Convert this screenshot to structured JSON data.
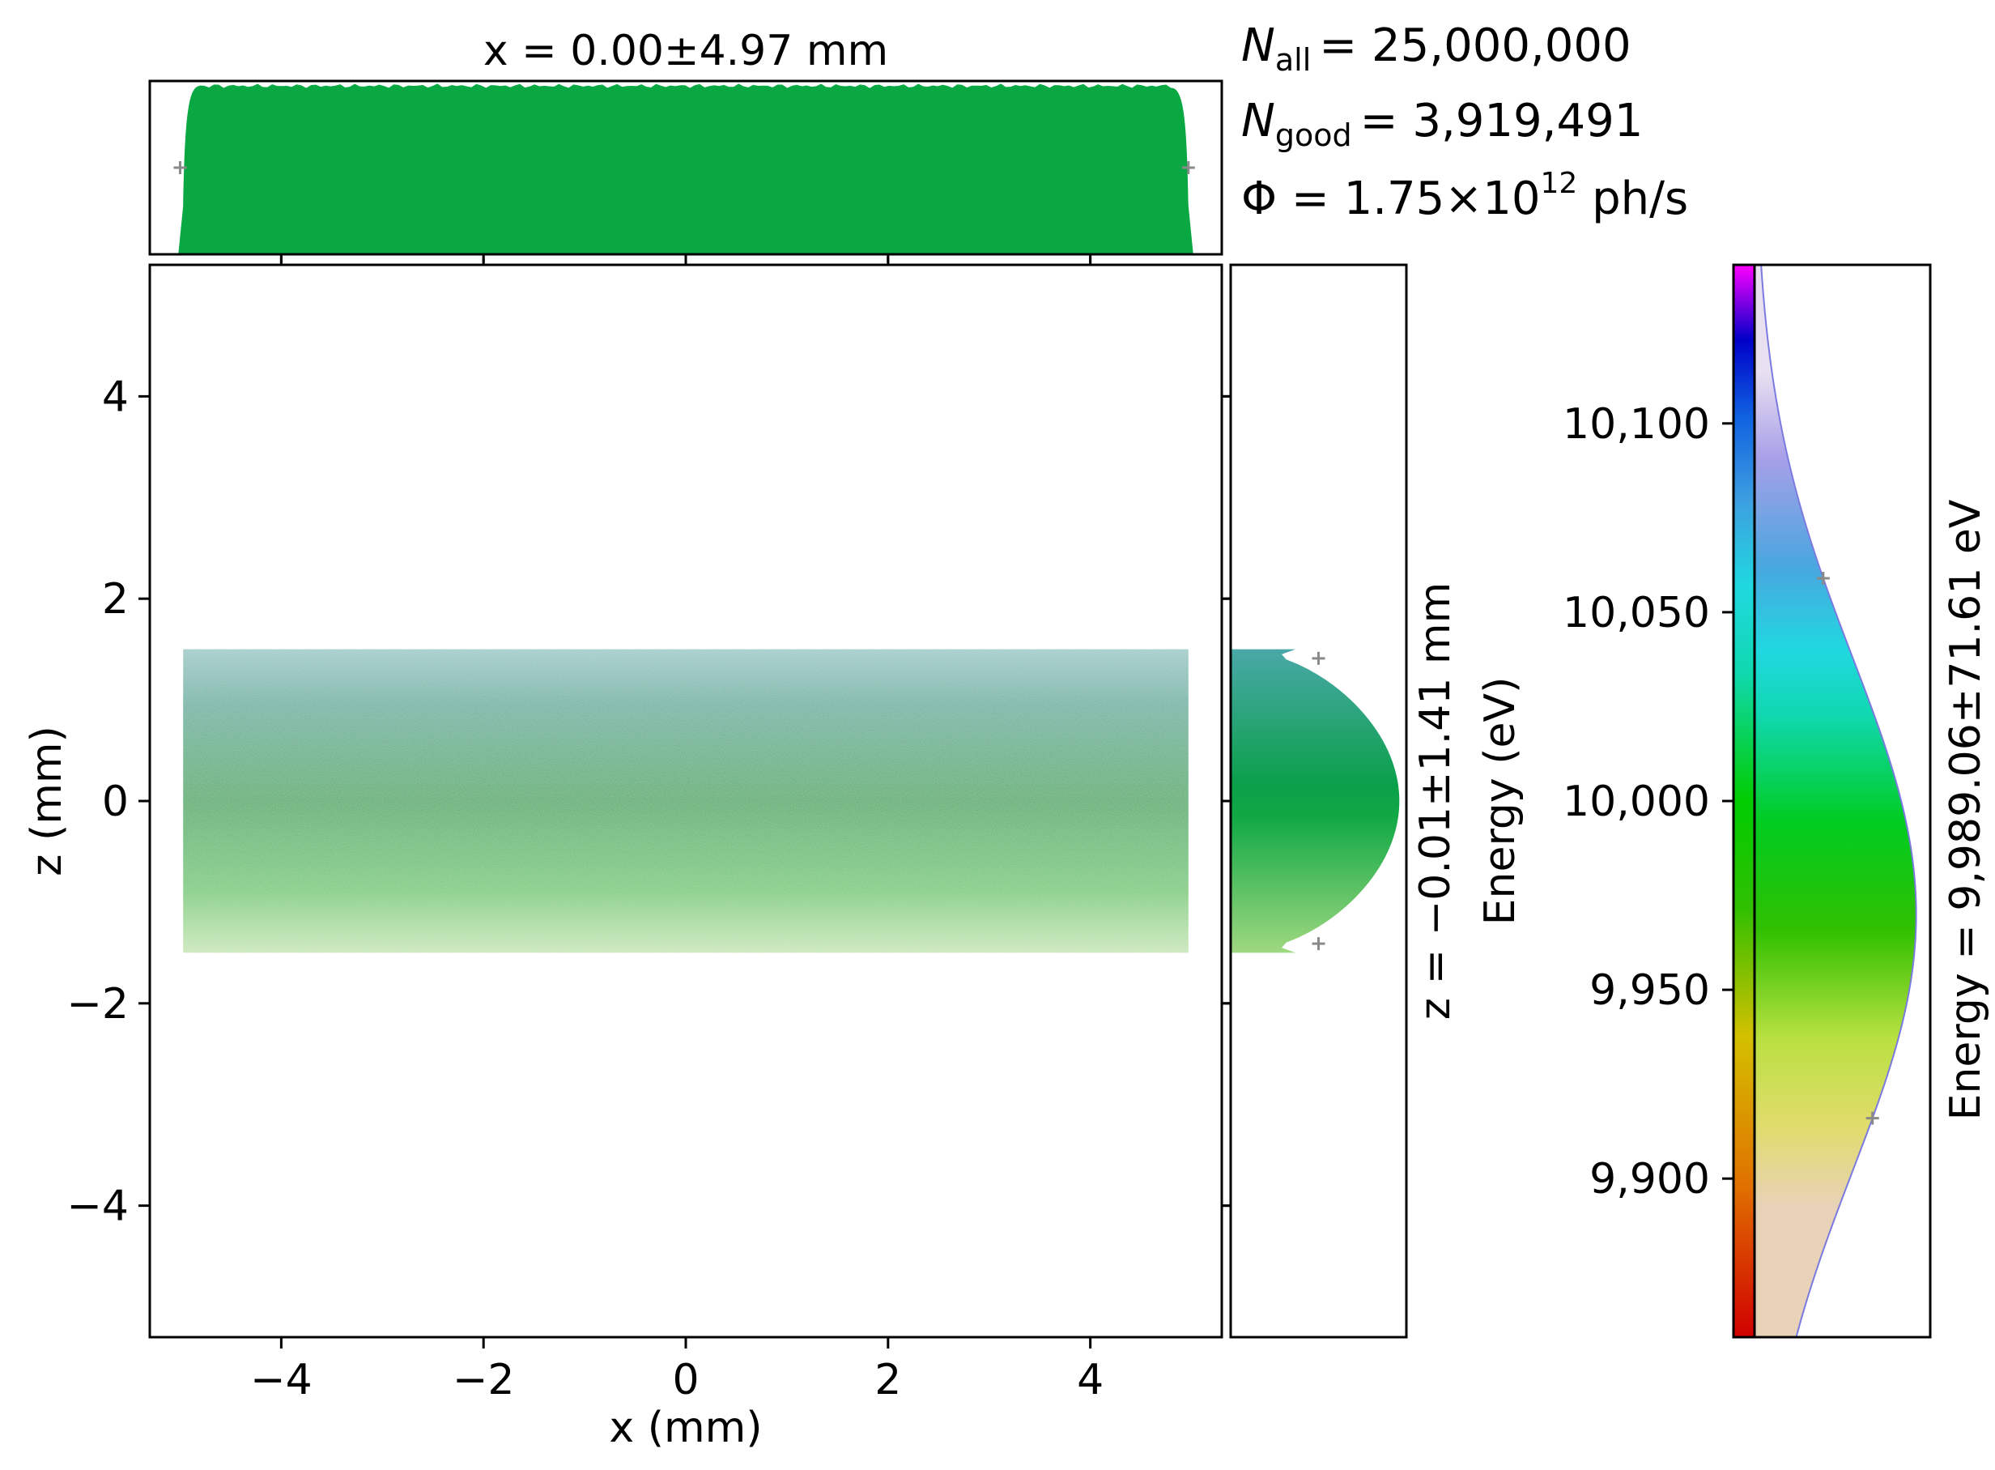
{
  "chart_data": {
    "type": "heatmap",
    "main": {
      "xlabel": "x (mm)",
      "ylabel": "z (mm)",
      "xlim": [
        -5.3,
        5.3
      ],
      "ylim": [
        -5.3,
        5.3
      ],
      "xticks": [
        -4,
        -2,
        0,
        2,
        4
      ],
      "yticks": [
        -4,
        -2,
        0,
        2,
        4
      ],
      "xtick_labels": [
        "−4",
        "−2",
        "0",
        "2",
        "4"
      ],
      "ytick_labels": [
        "−4",
        "−2",
        "0",
        "2",
        "4"
      ],
      "beam_x_range": [
        -4.97,
        4.97
      ],
      "beam_z_range": [
        -1.5,
        1.5
      ],
      "colors": {
        "top": "#2e9e9a",
        "middle": "#0aa047",
        "bottom": "#8ed068"
      }
    },
    "x_histogram": {
      "title": "x = 0.00±4.97 mm",
      "x_range": [
        -4.97,
        4.97
      ],
      "shape": "flat-top",
      "fwhm_markers": [
        -5.0,
        4.97
      ],
      "color": "#09a843"
    },
    "z_histogram": {
      "title": "z = −0.01±1.41 mm",
      "z_range": [
        -1.5,
        1.5
      ],
      "shape": "half-ellipse",
      "fwhm_markers": [
        -1.41,
        1.41
      ]
    },
    "energy_histogram": {
      "title": "Energy = 9,989.06±71.61 eV",
      "ylabel": "Energy (eV)",
      "ylim": [
        9858,
        10142
      ],
      "yticks": [
        9900,
        9950,
        10000,
        10050,
        10100
      ],
      "ytick_labels": [
        "9,900",
        "9,950",
        "10,000",
        "10,050",
        "10,100"
      ],
      "mean": 9989.06,
      "sigma": 71.61,
      "peak": 9970,
      "fwhm_markers": [
        9916,
        10059
      ],
      "colormap": [
        "#d00000",
        "#e07000",
        "#d4c000",
        "#30c000",
        "#00cc00",
        "#10d8b0",
        "#20d8e0",
        "#3d9fe0",
        "#1060e0",
        "#0000c8",
        "#c000c0",
        "#ff00ff"
      ]
    },
    "stats": {
      "n_all_label": "N",
      "n_all_sub": "all",
      "n_all_value": "= 25,000,000",
      "n_good_label": "N",
      "n_good_sub": "good",
      "n_good_value": "= 3,919,491",
      "flux_prefix": "Φ = 1.75×10",
      "flux_exp": "12",
      "flux_unit": " ph/s"
    }
  }
}
